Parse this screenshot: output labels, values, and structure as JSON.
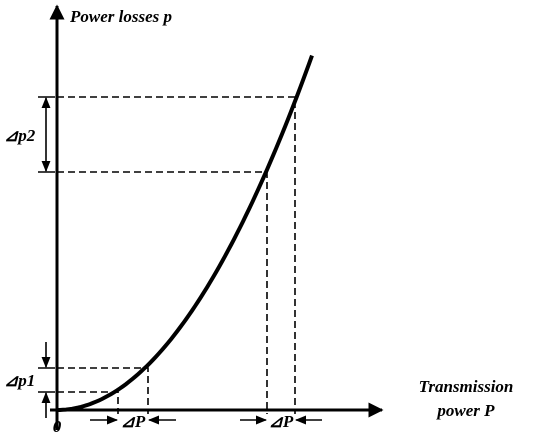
{
  "y_axis_label": "Power losses p",
  "x_axis_label": [
    "Transmission",
    "power P"
  ],
  "origin": "0",
  "delta_p2": "⊿p2",
  "delta_p1": "⊿p1",
  "delta_P": [
    "⊿P",
    "⊿P"
  ]
}
